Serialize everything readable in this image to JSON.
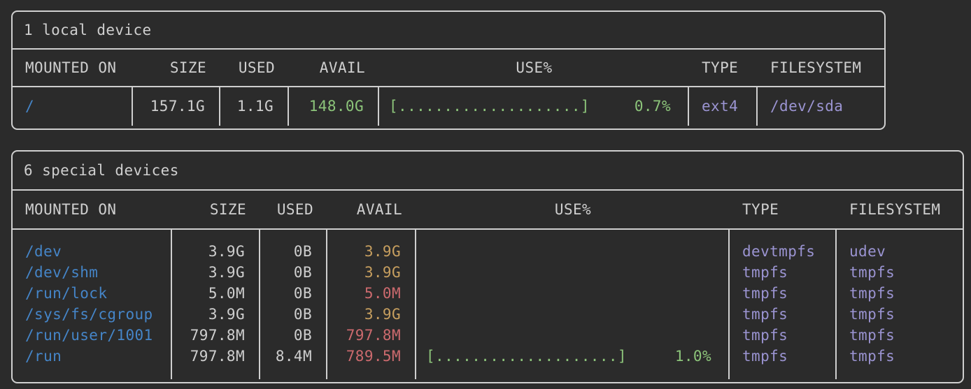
{
  "colors": {
    "background": "#2b2b2b",
    "border": "#cfcfcf",
    "text": "#cfcfcf",
    "mount_blue": "#4585c8",
    "ok_green": "#8cc47a",
    "warn_yellow": "#c79f5f",
    "low_red": "#cc6a6e",
    "fs_purple": "#9b94d2"
  },
  "columns": {
    "mounted_on": "MOUNTED ON",
    "size": "SIZE",
    "used": "USED",
    "avail": "AVAIL",
    "use_pct": "USE%",
    "type": "TYPE",
    "filesystem": "FILESYSTEM"
  },
  "tables": [
    {
      "title": "1 local device",
      "rows": [
        {
          "mounted_on": "/",
          "size": "157.1G",
          "used": "1.1G",
          "avail": "148.0G",
          "avail_color": "green",
          "bar": "[....................]",
          "use_pct": "0.7%",
          "type": "ext4",
          "filesystem": "/dev/sda"
        }
      ]
    },
    {
      "title": "6 special devices",
      "rows": [
        {
          "mounted_on": "/dev",
          "size": "3.9G",
          "used": "0B",
          "avail": "3.9G",
          "avail_color": "yellow",
          "bar": "",
          "use_pct": "",
          "type": "devtmpfs",
          "filesystem": "udev"
        },
        {
          "mounted_on": "/dev/shm",
          "size": "3.9G",
          "used": "0B",
          "avail": "3.9G",
          "avail_color": "yellow",
          "bar": "",
          "use_pct": "",
          "type": "tmpfs",
          "filesystem": "tmpfs"
        },
        {
          "mounted_on": "/run/lock",
          "size": "5.0M",
          "used": "0B",
          "avail": "5.0M",
          "avail_color": "red",
          "bar": "",
          "use_pct": "",
          "type": "tmpfs",
          "filesystem": "tmpfs"
        },
        {
          "mounted_on": "/sys/fs/cgroup",
          "size": "3.9G",
          "used": "0B",
          "avail": "3.9G",
          "avail_color": "yellow",
          "bar": "",
          "use_pct": "",
          "type": "tmpfs",
          "filesystem": "tmpfs"
        },
        {
          "mounted_on": "/run/user/1001",
          "size": "797.8M",
          "used": "0B",
          "avail": "797.8M",
          "avail_color": "red",
          "bar": "",
          "use_pct": "",
          "type": "tmpfs",
          "filesystem": "tmpfs"
        },
        {
          "mounted_on": "/run",
          "size": "797.8M",
          "used": "8.4M",
          "avail": "789.5M",
          "avail_color": "red",
          "bar": "[....................]",
          "use_pct": "1.0%",
          "type": "tmpfs",
          "filesystem": "tmpfs"
        }
      ]
    }
  ]
}
